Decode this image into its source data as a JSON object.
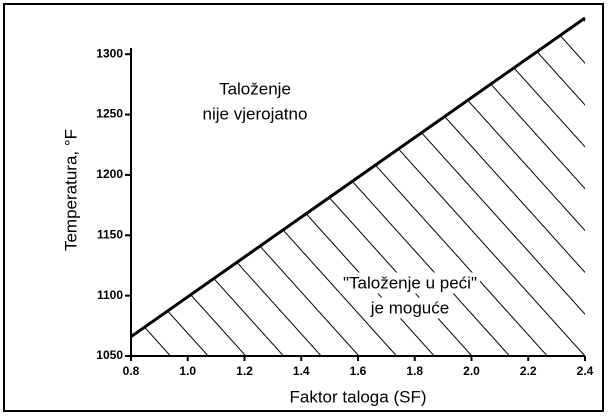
{
  "chart_data": {
    "type": "area",
    "x_label": "Faktor taloga (SF)",
    "y_label": "Temperatura, °F",
    "x": [
      0.8,
      2.4
    ],
    "values": [
      1066,
      1330
    ],
    "color": "#000000",
    "hatch": true,
    "xlim": [
      0.8,
      2.4
    ],
    "ylim": [
      1050,
      1330
    ],
    "xticks": [
      0.8,
      {
        "value": 1,
        "label": "1.0"
      },
      1.2,
      1.4,
      1.6,
      1.8,
      {
        "value": 2,
        "label": "2.0"
      },
      2.2,
      2.4
    ],
    "yticks": [
      1050,
      1100,
      1150,
      1200,
      1250,
      1300
    ],
    "annotations": [
      {
        "lines": [
          "Taloženje",
          "nije vjerojatno"
        ]
      },
      {
        "lines": [
          "\"Taloženje u peći\"",
          "je moguće"
        ]
      }
    ]
  }
}
